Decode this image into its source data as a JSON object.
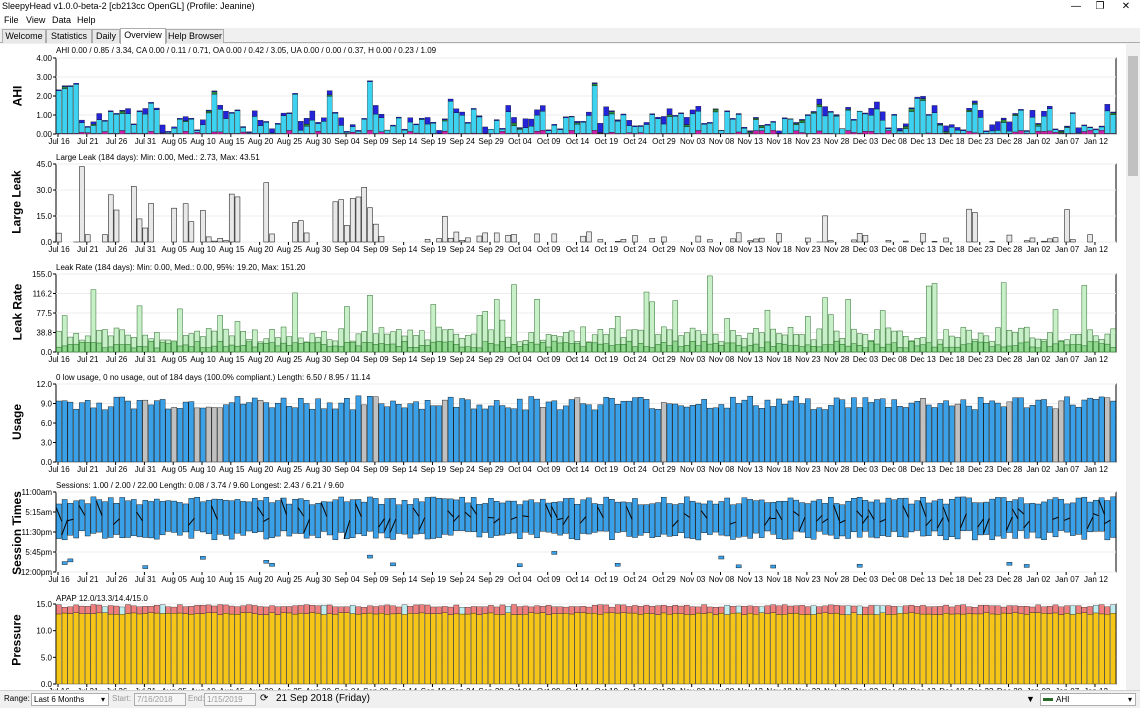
{
  "window": {
    "title": "SleepyHead v1.0.0-beta-2 [cb213cc OpenGL] (Profile: Jeanine)",
    "minimize": "—",
    "maximize": "❐",
    "close": "✕"
  },
  "menu": [
    "File",
    "View",
    "Data",
    "Help"
  ],
  "tabs": [
    "Welcome",
    "Statistics",
    "Daily",
    "Overview",
    "Help Browser"
  ],
  "active_tab": "Overview",
  "x_dates": [
    "Jul 16",
    "Jul 21",
    "Jul 26",
    "Jul 31",
    "Aug 05",
    "Aug 10",
    "Aug 15",
    "Aug 20",
    "Aug 25",
    "Aug 30",
    "Sep 04",
    "Sep 09",
    "Sep 14",
    "Sep 19",
    "Sep 24",
    "Sep 29",
    "Oct 04",
    "Oct 09",
    "Oct 14",
    "Oct 19",
    "Oct 24",
    "Oct 29",
    "Nov 03",
    "Nov 08",
    "Nov 13",
    "Nov 18",
    "Nov 23",
    "Nov 28",
    "Dec 03",
    "Dec 08",
    "Dec 13",
    "Dec 18",
    "Dec 23",
    "Dec 28",
    "Jan 02",
    "Jan 07",
    "Jan 12"
  ],
  "graphs": {
    "ahi": {
      "label": "AHI",
      "title": "AHI 0.00 / 0.85 / 3.34, CA 0.00 / 0.11 / 0.71, OA 0.00 / 0.42 / 3.05, UA 0.00 / 0.00 / 0.37, H 0.00 / 0.23 / 1.09",
      "yticks": [
        "4.00",
        "3.00",
        "2.00",
        "1.00",
        "0.00"
      ],
      "ymax": 4
    },
    "large_leak": {
      "label": "Large Leak",
      "title": "Large Leak (184 days): Min: 0.00, Med.: 2.73, Max: 43.51",
      "yticks": [
        "45.0",
        "30.0",
        "15.0",
        "0.0"
      ],
      "ymax": 45
    },
    "leak_rate": {
      "label": "Leak Rate",
      "title": "Leak Rate (184 days): Min: 0.00, Med.: 0.00, 95%: 19.20, Max: 151.20",
      "yticks": [
        "155.0",
        "116.2",
        "77.5",
        "38.8",
        "0.0"
      ],
      "ymax": 155
    },
    "usage": {
      "label": "Usage",
      "title": "0 low usage, 0 no usage, out of 184 days (100.0% compliant.) Length: 6.50 / 8.95 / 11.14",
      "yticks": [
        "12.0",
        "9.0",
        "6.0",
        "3.0",
        "0.0"
      ],
      "ymax": 12
    },
    "session_times": {
      "label": "Session Times",
      "title": "Sessions: 1.00 / 2.00 / 22.00 Length: 0.08 / 3.74 / 9.60 Longest: 2.43 / 6.21 / 9.60",
      "yticks": [
        "11:00am",
        "5:15am",
        "11:30pm",
        "5:45pm",
        "12:00pm"
      ]
    },
    "pressure": {
      "label": "Pressure",
      "title": "APAP 12.0/13.3/14.4/15.0",
      "yticks": [
        "15.0",
        "10.0",
        "5.0",
        "0.0"
      ],
      "ymax": 15
    }
  },
  "colors": {
    "ca": "#3cd2f0",
    "oa": "#2424d8",
    "h": "#2a8a3c",
    "ua": "#cc22aa",
    "usage": "#3aa0e8",
    "usage_gray": "#c0c0c0",
    "leak_light": "#c8f0c8",
    "leak_dark": "#1a6a1a",
    "large_leak": "#e8e8e8",
    "pressure": "#f5c518",
    "pressure_top": "#f08080",
    "session": "#3aa0e8"
  },
  "statusbar": {
    "range_label": "Range:",
    "range_value": "Last 6 Months",
    "start_label": "Start:",
    "start_value": "7/16/2018",
    "end_label": "End:",
    "end_value": "1/15/2019",
    "current_date": "21 Sep 2018 (Friday)",
    "legend_item": "AHI"
  }
}
